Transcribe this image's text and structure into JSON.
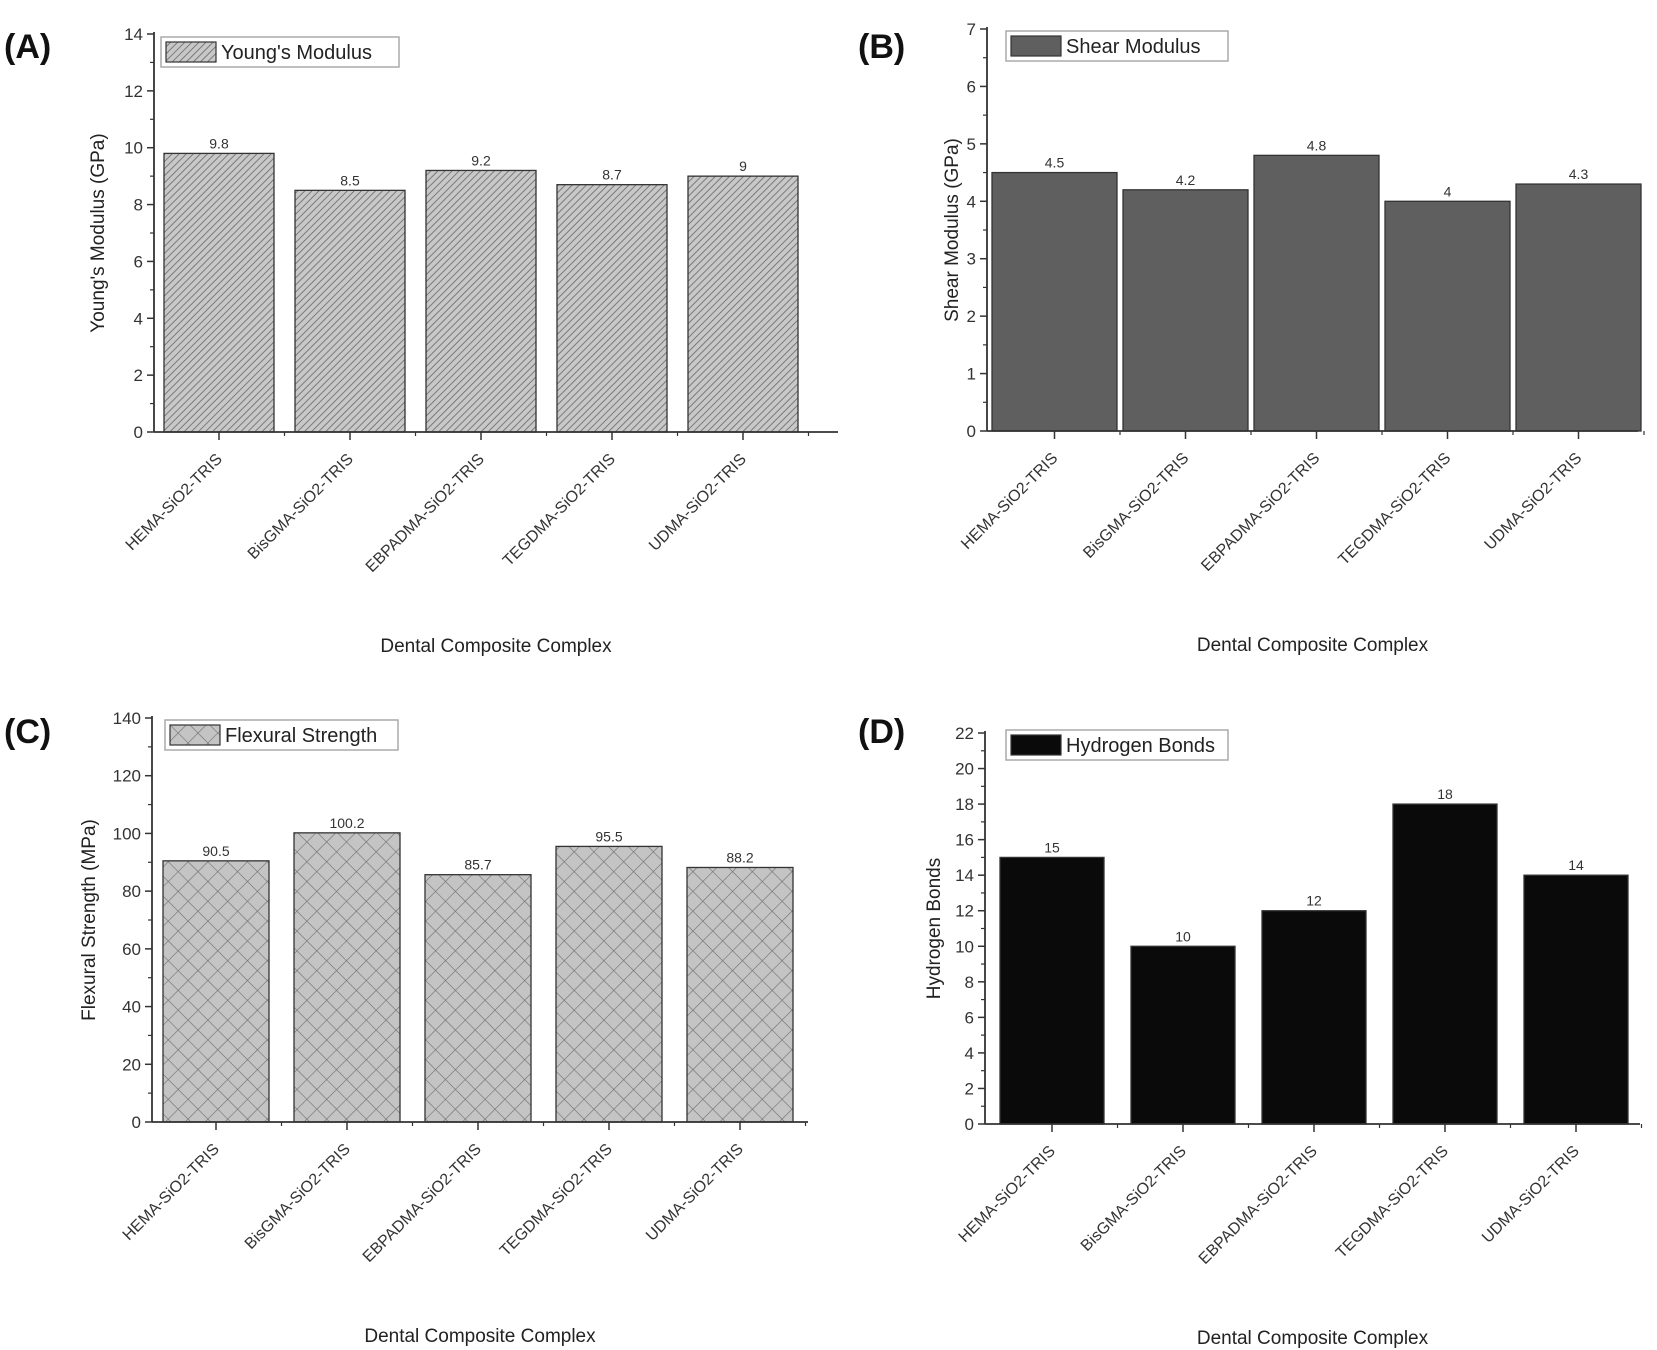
{
  "chart_data": [
    {
      "type": "bar",
      "panel": "(A)",
      "title": "",
      "legend": "Young's Modulus",
      "legend_position": "top-left",
      "xlabel": "Dental Composite Complex",
      "ylabel": "Young's Modulus (GPa)",
      "ylim": [
        0,
        14
      ],
      "yticks": [
        0,
        2,
        4,
        6,
        8,
        10,
        12,
        14
      ],
      "categories": [
        "HEMA-SiO2-TRIS",
        "BisGMA-SiO2-TRIS",
        "EBPADMA-SiO2-TRIS",
        "TEGDMA-SiO2-TRIS",
        "UDMA-SiO2-TRIS"
      ],
      "values": [
        9.8,
        8.5,
        9.2,
        8.7,
        9
      ],
      "data_labels": [
        "9.8",
        "8.5",
        "9.2",
        "8.7",
        "9"
      ],
      "fill": "hatch-diagonal",
      "color": "#b0b0b0",
      "grid": false
    },
    {
      "type": "bar",
      "panel": "(B)",
      "title": "",
      "legend": "Shear Modulus",
      "legend_position": "top-left",
      "xlabel": "Dental Composite Complex",
      "ylabel": "Shear Modulus (GPa)",
      "ylim": [
        0,
        7
      ],
      "yticks": [
        0,
        1,
        2,
        3,
        4,
        5,
        6,
        7
      ],
      "categories": [
        "HEMA-SiO2-TRIS",
        "BisGMA-SiO2-TRIS",
        "EBPADMA-SiO2-TRIS",
        "TEGDMA-SiO2-TRIS",
        "UDMA-SiO2-TRIS"
      ],
      "values": [
        4.5,
        4.2,
        4.8,
        4,
        4.3
      ],
      "data_labels": [
        "4.5",
        "4.2",
        "4.8",
        "4",
        "4.3"
      ],
      "fill": "solid",
      "color": "#5f5f5f",
      "grid": false
    },
    {
      "type": "bar",
      "panel": "(C)",
      "title": "",
      "legend": "Flexural Strength",
      "legend_position": "top-left",
      "xlabel": "Dental Composite Complex",
      "ylabel": "Flexural Strength (MPa)",
      "ylim": [
        0,
        140
      ],
      "yticks": [
        0,
        20,
        40,
        60,
        80,
        100,
        120,
        140
      ],
      "categories": [
        "HEMA-SiO2-TRIS",
        "BisGMA-SiO2-TRIS",
        "EBPADMA-SiO2-TRIS",
        "TEGDMA-SiO2-TRIS",
        "UDMA-SiO2-TRIS"
      ],
      "values": [
        90.5,
        100.2,
        85.7,
        95.5,
        88.2
      ],
      "data_labels": [
        "90.5",
        "100.2",
        "85.7",
        "95.5",
        "88.2"
      ],
      "fill": "hatch-crosshatch",
      "color": "#c4c4c4",
      "grid": false
    },
    {
      "type": "bar",
      "panel": "(D)",
      "title": "",
      "legend": "Hydrogen Bonds",
      "legend_position": "top-left",
      "xlabel": "Dental Composite Complex",
      "ylabel": "Hydrogen Bonds",
      "ylim": [
        0,
        22
      ],
      "yticks": [
        0,
        2,
        4,
        6,
        8,
        10,
        12,
        14,
        16,
        18,
        20,
        22
      ],
      "categories": [
        "HEMA-SiO2-TRIS",
        "BisGMA-SiO2-TRIS",
        "EBPADMA-SiO2-TRIS",
        "TEGDMA-SiO2-TRIS",
        "UDMA-SiO2-TRIS"
      ],
      "values": [
        15,
        10,
        12,
        18,
        14
      ],
      "data_labels": [
        "15",
        "10",
        "12",
        "18",
        "14"
      ],
      "fill": "solid",
      "color": "#0a0a0a",
      "grid": false
    }
  ]
}
